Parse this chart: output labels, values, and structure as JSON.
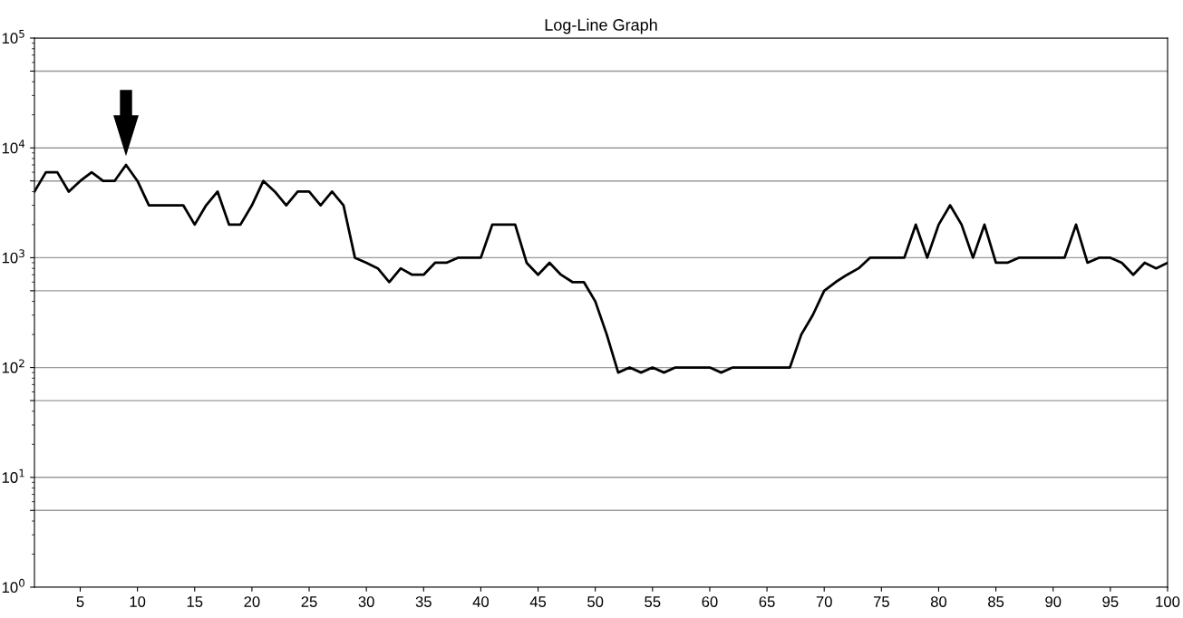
{
  "chart_data": {
    "type": "line",
    "title": "Log-Line Graph",
    "x": [
      1,
      2,
      3,
      4,
      5,
      6,
      7,
      8,
      9,
      10,
      11,
      12,
      13,
      14,
      15,
      16,
      17,
      18,
      19,
      20,
      21,
      22,
      23,
      24,
      25,
      26,
      27,
      28,
      29,
      30,
      31,
      32,
      33,
      34,
      35,
      36,
      37,
      38,
      39,
      40,
      41,
      42,
      43,
      44,
      45,
      46,
      47,
      48,
      49,
      50,
      51,
      52,
      53,
      54,
      55,
      56,
      57,
      58,
      59,
      60,
      61,
      62,
      63,
      64,
      65,
      66,
      67,
      68,
      69,
      70,
      71,
      72,
      73,
      74,
      75,
      76,
      77,
      78,
      79,
      80,
      81,
      82,
      83,
      84,
      85,
      86,
      87,
      88,
      89,
      90,
      91,
      92,
      93,
      94,
      95,
      96,
      97,
      98,
      99,
      100
    ],
    "series": [
      {
        "color": "#000000",
        "values": [
          4000,
          6000,
          6000,
          4000,
          5000,
          6000,
          5000,
          5000,
          7000,
          5000,
          3000,
          3000,
          3000,
          3000,
          2000,
          3000,
          4000,
          2000,
          2000,
          3000,
          5000,
          4000,
          3000,
          4000,
          4000,
          3000,
          4000,
          3000,
          1000,
          900,
          800,
          600,
          800,
          700,
          700,
          900,
          900,
          1000,
          1000,
          1000,
          2000,
          2000,
          2000,
          900,
          700,
          900,
          700,
          600,
          600,
          400,
          200,
          90,
          100,
          90,
          100,
          90,
          100,
          100,
          100,
          100,
          90,
          100,
          100,
          100,
          100,
          100,
          100,
          200,
          300,
          500,
          600,
          700,
          800,
          1000,
          1000,
          1000,
          1000,
          2000,
          1000,
          2000,
          3000,
          2000,
          1000,
          2000,
          900,
          900,
          1000,
          1000,
          1000,
          1000,
          1000,
          2000,
          900,
          1000,
          1000,
          900,
          700,
          900,
          800,
          900
        ]
      }
    ],
    "log": "y",
    "xlim": [
      1,
      100
    ],
    "xticks": [
      5,
      10,
      15,
      20,
      25,
      30,
      35,
      40,
      45,
      50,
      55,
      60,
      65,
      70,
      75,
      80,
      85,
      90,
      95,
      100
    ],
    "ylim": [
      1,
      100000
    ],
    "yticks": [
      {
        "value": 1,
        "label": "10$^{0}$"
      },
      {
        "value": 5,
        "label": null
      },
      {
        "value": 10,
        "label": "10$^{1}$"
      },
      {
        "value": 50,
        "label": null
      },
      {
        "value": 100,
        "label": "10$^{2}$"
      },
      {
        "value": 500,
        "label": null
      },
      {
        "value": 1000,
        "label": "10$^{3}$"
      },
      {
        "value": 5000,
        "label": null
      },
      {
        "value": 10000,
        "label": "10$^{4}$"
      },
      {
        "value": 50000,
        "label": null
      },
      {
        "value": 100000,
        "label": "10$^{5}$"
      }
    ],
    "grid": "y",
    "marker": "none",
    "line_style": "solid",
    "legend": false
  }
}
